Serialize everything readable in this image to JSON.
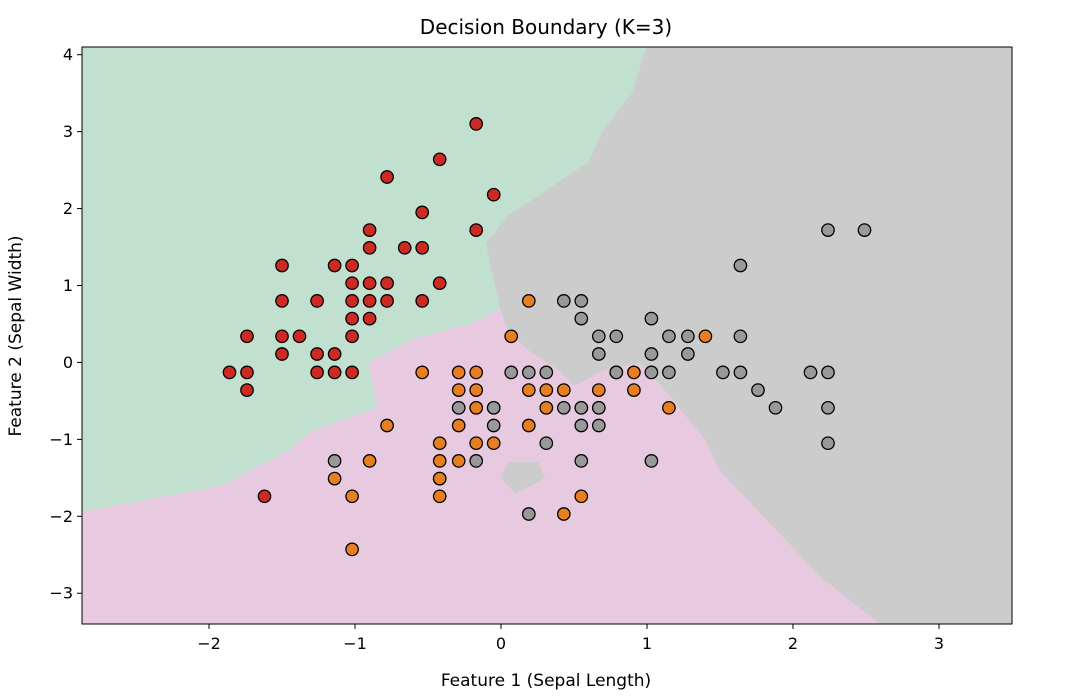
{
  "chart_data": {
    "type": "scatter",
    "title": "Decision Boundary (K=3)",
    "xlabel": "Feature 1 (Sepal Length)",
    "ylabel": "Feature 2 (Sepal Width)",
    "xlim": [
      -2.87,
      3.5
    ],
    "ylim": [
      -3.4,
      4.1
    ],
    "x_ticks": [
      {
        "value": -2,
        "label": "−2"
      },
      {
        "value": -1,
        "label": "−1"
      },
      {
        "value": 0,
        "label": "0"
      },
      {
        "value": 1,
        "label": "1"
      },
      {
        "value": 2,
        "label": "2"
      },
      {
        "value": 3,
        "label": "3"
      }
    ],
    "y_ticks": [
      {
        "value": -3,
        "label": "−3"
      },
      {
        "value": -2,
        "label": "−2"
      },
      {
        "value": -1,
        "label": "−1"
      },
      {
        "value": 0,
        "label": "0"
      },
      {
        "value": 1,
        "label": "1"
      },
      {
        "value": 2,
        "label": "2"
      },
      {
        "value": 3,
        "label": "3"
      },
      {
        "value": 4,
        "label": "4"
      }
    ],
    "grid": false,
    "regions": [
      {
        "class": 0,
        "color": "#c1e0cf",
        "polygon": [
          [
            -2.87,
            4.1
          ],
          [
            1.0,
            4.1
          ],
          [
            0.9,
            3.5
          ],
          [
            0.7,
            3.0
          ],
          [
            0.6,
            2.6
          ],
          [
            0.25,
            2.15
          ],
          [
            0.05,
            1.9
          ],
          [
            -0.1,
            1.55
          ],
          [
            -0.05,
            1.1
          ],
          [
            0.0,
            0.7
          ],
          [
            -0.2,
            0.5
          ],
          [
            -0.6,
            0.3
          ],
          [
            -0.9,
            0.0
          ],
          [
            -0.85,
            -0.6
          ],
          [
            -1.3,
            -0.9
          ],
          [
            -1.45,
            -1.15
          ],
          [
            -1.9,
            -1.6
          ],
          [
            -2.87,
            -1.95
          ]
        ]
      },
      {
        "class": 1,
        "color": "#e8cae0",
        "polygon": [
          [
            -2.87,
            -1.95
          ],
          [
            -1.9,
            -1.6
          ],
          [
            -1.45,
            -1.15
          ],
          [
            -1.3,
            -0.9
          ],
          [
            -0.85,
            -0.6
          ],
          [
            -0.9,
            0.0
          ],
          [
            -0.6,
            0.3
          ],
          [
            -0.2,
            0.5
          ],
          [
            0.0,
            0.7
          ],
          [
            0.05,
            0.4
          ],
          [
            0.2,
            0.15
          ],
          [
            0.4,
            -0.1
          ],
          [
            0.5,
            -0.3
          ],
          [
            0.7,
            -0.1
          ],
          [
            0.95,
            0.0
          ],
          [
            1.1,
            -0.3
          ],
          [
            1.25,
            -0.65
          ],
          [
            1.4,
            -1.0
          ],
          [
            1.5,
            -1.4
          ],
          [
            1.65,
            -1.7
          ],
          [
            1.9,
            -2.2
          ],
          [
            2.2,
            -2.8
          ],
          [
            2.6,
            -3.4
          ],
          [
            -2.87,
            -3.4
          ]
        ]
      },
      {
        "class": 2,
        "color": "#cccccc",
        "polygon": [
          [
            1.0,
            4.1
          ],
          [
            3.5,
            4.1
          ],
          [
            3.5,
            -3.4
          ],
          [
            2.6,
            -3.4
          ],
          [
            2.2,
            -2.8
          ],
          [
            1.9,
            -2.2
          ],
          [
            1.65,
            -1.7
          ],
          [
            1.5,
            -1.4
          ],
          [
            1.4,
            -1.0
          ],
          [
            1.25,
            -0.65
          ],
          [
            1.1,
            -0.3
          ],
          [
            0.95,
            0.0
          ],
          [
            0.7,
            -0.1
          ],
          [
            0.5,
            -0.3
          ],
          [
            0.4,
            -0.1
          ],
          [
            0.2,
            0.15
          ],
          [
            0.05,
            0.4
          ],
          [
            0.0,
            0.7
          ],
          [
            -0.05,
            1.1
          ],
          [
            -0.1,
            1.55
          ],
          [
            0.05,
            1.9
          ],
          [
            0.25,
            2.15
          ],
          [
            0.6,
            2.6
          ],
          [
            0.7,
            3.0
          ],
          [
            0.9,
            3.5
          ]
        ]
      },
      {
        "class": 2,
        "color": "#cccccc",
        "polygon": [
          [
            0.05,
            -1.3
          ],
          [
            0.25,
            -1.3
          ],
          [
            0.3,
            -1.5
          ],
          [
            0.1,
            -1.7
          ],
          [
            0.0,
            -1.5
          ]
        ]
      }
    ],
    "series": [
      {
        "class": 0,
        "color": "#cc2a22",
        "x": [
          -0.17,
          -0.42,
          -0.05,
          -0.78,
          -0.54,
          -0.17,
          -0.9,
          -0.9,
          -0.66,
          -0.54,
          -1.5,
          -1.14,
          -1.02,
          -1.02,
          -0.9,
          -0.78,
          -0.42,
          -1.5,
          -1.26,
          -1.02,
          -0.9,
          -0.78,
          -0.54,
          -1.74,
          -1.5,
          -1.38,
          -1.02,
          -1.02,
          -0.9,
          -1.5,
          -1.26,
          -1.14,
          -1.26,
          -1.14,
          -1.02,
          -1.86,
          -1.74,
          -1.74,
          -1.62
        ],
        "y": [
          3.1,
          2.64,
          2.18,
          2.41,
          1.95,
          1.72,
          1.72,
          1.49,
          1.49,
          1.49,
          1.26,
          1.26,
          1.26,
          1.03,
          1.03,
          1.03,
          1.03,
          0.8,
          0.8,
          0.8,
          0.8,
          0.8,
          0.8,
          0.34,
          0.34,
          0.34,
          0.57,
          0.34,
          0.57,
          0.11,
          0.11,
          0.11,
          -0.13,
          -0.13,
          -0.13,
          -0.13,
          -0.13,
          -0.36,
          -1.74
        ]
      },
      {
        "class": 1,
        "color": "#e77f22",
        "x": [
          0.19,
          0.07,
          1.4,
          -0.54,
          -0.29,
          -0.17,
          -0.29,
          -0.17,
          -0.29,
          -0.17,
          0.31,
          0.43,
          0.67,
          0.19,
          0.91,
          0.79,
          -0.17,
          0.31,
          -0.05,
          0.31,
          0.55,
          0.67,
          0.91,
          1.15,
          -0.78,
          -0.29,
          0.19,
          -0.42,
          -0.17,
          -0.05,
          -0.42,
          -0.29,
          -0.9,
          -0.42,
          -1.14,
          -0.42,
          -1.02,
          -0.42,
          0.55,
          0.43,
          -1.02
        ],
        "y": [
          0.8,
          0.34,
          0.34,
          -0.13,
          -0.13,
          -0.13,
          -0.36,
          -0.36,
          -0.59,
          -0.59,
          -0.36,
          -0.36,
          -0.36,
          -0.36,
          -0.13,
          -0.13,
          -0.59,
          -0.59,
          -0.59,
          -0.59,
          -0.59,
          -0.59,
          -0.36,
          -0.59,
          -0.82,
          -0.82,
          -0.82,
          -1.05,
          -1.05,
          -1.05,
          -1.28,
          -1.28,
          -1.28,
          -1.51,
          -1.51,
          -1.74,
          -1.74,
          -1.51,
          -1.74,
          -1.97,
          -2.43
        ]
      },
      {
        "class": 2,
        "color": "#999999",
        "x": [
          2.24,
          2.49,
          1.64,
          0.43,
          0.55,
          0.55,
          0.67,
          0.79,
          1.03,
          1.15,
          1.28,
          1.64,
          0.67,
          1.03,
          1.28,
          0.07,
          0.19,
          0.31,
          0.79,
          1.03,
          1.15,
          1.52,
          1.64,
          2.12,
          2.24,
          -0.29,
          -0.05,
          0.43,
          0.55,
          0.67,
          0.55,
          0.67,
          1.76,
          1.88,
          2.24,
          -0.05,
          0.31,
          -0.17,
          -1.14,
          0.55,
          1.03,
          0.19,
          2.24
        ],
        "y": [
          1.72,
          1.72,
          1.26,
          0.8,
          0.8,
          0.57,
          0.34,
          0.34,
          0.57,
          0.34,
          0.34,
          0.34,
          0.11,
          0.11,
          0.11,
          -0.13,
          -0.13,
          -0.13,
          -0.13,
          -0.13,
          -0.13,
          -0.13,
          -0.13,
          -0.13,
          -0.13,
          -0.59,
          -0.59,
          -0.59,
          -0.59,
          -0.59,
          -0.82,
          -0.82,
          -0.36,
          -0.59,
          -0.59,
          -0.82,
          -1.05,
          -1.28,
          -1.28,
          -1.28,
          -1.28,
          -1.97,
          -1.05
        ]
      }
    ]
  }
}
